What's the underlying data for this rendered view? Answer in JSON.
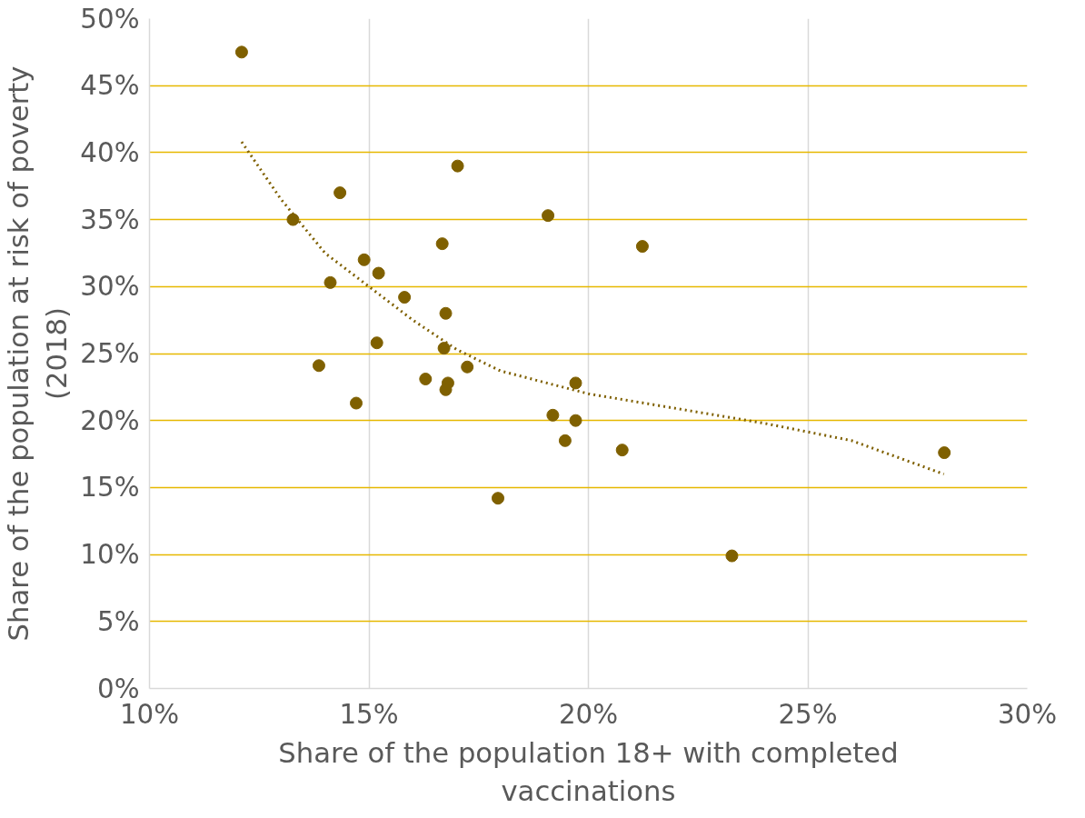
{
  "chart_data": {
    "type": "scatter",
    "xlabel": "Share of the population 18+ with completed vaccinations",
    "ylabel": "Share of the population at risk of poverty (2018)",
    "xlim": [
      10,
      30
    ],
    "ylim": [
      0,
      50
    ],
    "xticks": [
      {
        "value": 10,
        "label": "10%"
      },
      {
        "value": 15,
        "label": "15%"
      },
      {
        "value": 20,
        "label": "20%"
      },
      {
        "value": 25,
        "label": "25%"
      },
      {
        "value": 30,
        "label": "30%"
      }
    ],
    "yticks": [
      {
        "value": 0,
        "label": "0%"
      },
      {
        "value": 5,
        "label": "5%"
      },
      {
        "value": 10,
        "label": "10%"
      },
      {
        "value": 15,
        "label": "15%"
      },
      {
        "value": 20,
        "label": "20%"
      },
      {
        "value": 25,
        "label": "25%"
      },
      {
        "value": 30,
        "label": "30%"
      },
      {
        "value": 35,
        "label": "35%"
      },
      {
        "value": 40,
        "label": "40%"
      },
      {
        "value": 45,
        "label": "45%"
      },
      {
        "value": 50,
        "label": "50%"
      }
    ],
    "grid": true,
    "marker": "circle",
    "series": [
      {
        "color": "#7f6000",
        "x": [
          12.1,
          13.27,
          14.34,
          14.89,
          14.12,
          15.22,
          15.81,
          15.18,
          13.86,
          14.71,
          16.67,
          17.02,
          16.75,
          16.71,
          16.29,
          16.8,
          16.75,
          17.24,
          17.94,
          19.08,
          19.19,
          19.71,
          19.71,
          19.47,
          20.77,
          21.23,
          23.27,
          28.11
        ],
        "values": [
          47.5,
          35.0,
          37.0,
          32.0,
          30.3,
          31.0,
          29.2,
          25.8,
          24.1,
          21.3,
          33.2,
          39.0,
          28.0,
          25.4,
          23.1,
          22.8,
          22.3,
          24.0,
          14.2,
          35.3,
          20.4,
          22.8,
          20.0,
          18.5,
          17.8,
          33.0,
          9.9,
          17.6
        ]
      },
      {
        "type": "line",
        "line_style": "dotted",
        "marker": "none",
        "color": "#7f6000",
        "x": [
          12.1,
          13,
          14,
          15,
          16,
          17,
          18,
          20,
          22,
          24,
          26,
          28.1
        ],
        "values": [
          40.8,
          36.5,
          32.5,
          30.0,
          27.5,
          25.3,
          23.7,
          22.0,
          20.9,
          19.8,
          18.5,
          16.0
        ]
      }
    ]
  }
}
